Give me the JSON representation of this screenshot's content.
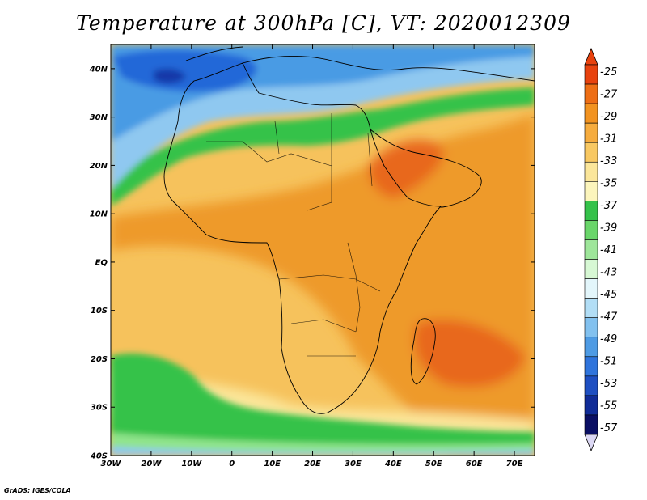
{
  "title": "Temperature at 300hPa [C], VT: 2020012309",
  "footer": "GrADS: IGES/COLA",
  "map": {
    "lon_range": [
      -30,
      75
    ],
    "lat_range": [
      -40,
      45
    ],
    "lon_ticks": [
      "30W",
      "20W",
      "10W",
      "0",
      "10E",
      "20E",
      "30E",
      "40E",
      "50E",
      "60E",
      "70E"
    ],
    "lat_ticks": [
      "40N",
      "30N",
      "20N",
      "10N",
      "EQ",
      "10S",
      "20S",
      "30S",
      "40S"
    ],
    "field_colors": {
      "ocean_base": "#f6c25c",
      "warm": "#ee9a2a",
      "warmest": "#e8681e",
      "green": "#35c24a",
      "light_green": "#90e48c",
      "light_blue": "#8fc8f0",
      "blue": "#4a9be4",
      "deep_blue": "#2467d8",
      "navy": "#1537a8"
    }
  },
  "colorbar": {
    "labels": [
      "-25",
      "-27",
      "-29",
      "-31",
      "-33",
      "-35",
      "-37",
      "-39",
      "-41",
      "-43",
      "-45",
      "-47",
      "-49",
      "-51",
      "-53",
      "-55",
      "-57"
    ],
    "colors": [
      "#e8420e",
      "#ee6e15",
      "#f29320",
      "#f6ac3e",
      "#f8c862",
      "#fbe69a",
      "#fcf5bc",
      "#35c24a",
      "#6ad66a",
      "#9ee69a",
      "#d7f8d4",
      "#e3f6fb",
      "#b2def6",
      "#82c1ef",
      "#4e9be4",
      "#2f74dc",
      "#1e4fc2",
      "#102c98",
      "#0a0f64"
    ],
    "top_arrow_color": "#e8420e",
    "bottom_arrow_color": "#dcd8f4"
  }
}
